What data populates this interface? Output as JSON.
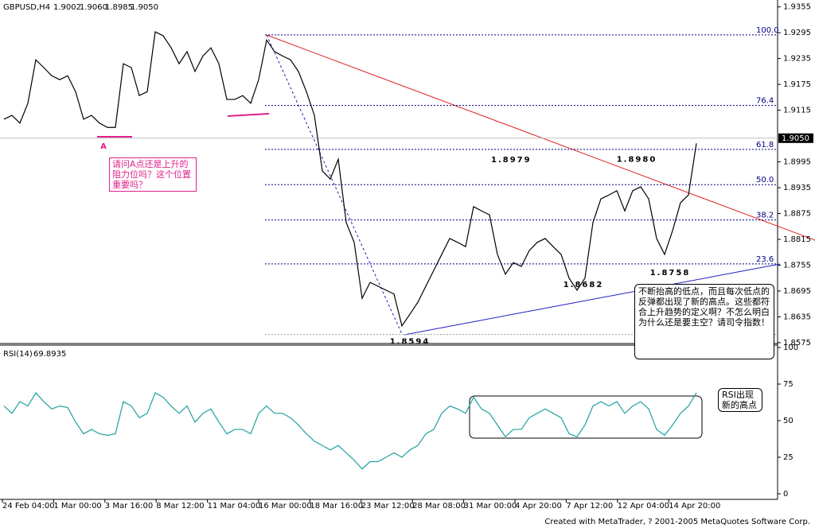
{
  "chart_data": [
    {
      "type": "line",
      "title": "GBPUSD,H4",
      "ohlc": [
        1.9002,
        {
          "value": 1.906,
          "label": "1.9060"
        },
        1.8985,
        {
          "value": 1.905,
          "label": "1.9050"
        }
      ],
      "color": "#000000",
      "values": [
        1.9094,
        1.9103,
        1.9085,
        1.9131,
        1.9232,
        1.9214,
        1.9195,
        1.9186,
        1.9195,
        1.9158,
        1.9094,
        1.9103,
        1.9085,
        1.9075,
        1.9075,
        1.9223,
        1.9214,
        1.9149,
        1.9158,
        1.9297,
        1.9288,
        1.926,
        1.9223,
        1.9251,
        1.9205,
        1.9241,
        1.926,
        1.9223,
        1.914,
        1.914,
        1.9149,
        1.9131,
        1.9186,
        1.9278,
        1.9251,
        1.9241,
        1.9232,
        1.9205,
        1.9158,
        1.9103,
        1.8974,
        1.8955,
        1.9001,
        1.8854,
        1.8808,
        1.8678,
        1.8715,
        1.8706,
        1.8697,
        1.8688,
        1.8614,
        1.8641,
        1.8669,
        1.8706,
        1.8743,
        1.878,
        1.8817,
        1.8808,
        1.8798,
        1.8891,
        1.8881,
        1.8872,
        1.878,
        1.8734,
        1.8761,
        1.8752,
        1.8789,
        1.8808,
        1.8817,
        1.8798,
        1.878,
        1.8725,
        1.8697,
        1.8725,
        1.8854,
        1.8909,
        1.8918,
        1.8928,
        1.8881,
        1.8928,
        1.8937,
        1.8909,
        1.8817,
        1.878,
        1.8835,
        1.89,
        1.8918,
        1.9038
      ],
      "ylim": [
        1.8573,
        1.9371
      ],
      "yticks": [
        1.9355,
        1.9295,
        1.9235,
        1.9175,
        1.9115,
        1.8995,
        1.8935,
        1.8875,
        1.8815,
        1.8755,
        1.8695,
        1.8635,
        1.8575
      ],
      "current_price": {
        "value": 1.905,
        "label": "1.9050"
      },
      "fib_levels": [
        {
          "ratio": "100.0",
          "price": 1.929
        },
        {
          "ratio": "76.4",
          "price": 1.9126
        },
        {
          "ratio": "61.8",
          "price": 1.9024
        },
        {
          "ratio": "50.0",
          "price": 1.8942
        },
        {
          "ratio": "38.2",
          "price": 1.886
        },
        {
          "ratio": "23.6",
          "price": 1.8758
        }
      ],
      "price_labels": [
        1.8979,
        {
          "value": 1.898,
          "label": "1.8980"
        },
        1.8758,
        1.8682,
        1.8594
      ],
      "time_labels": [
        "24 Feb 04:00",
        "1 Mar 00:00",
        "3 Mar 16:00",
        "8 Mar 12:00",
        "11 Mar 04:00",
        "16 Mar 00:00",
        "18 Mar 16:00",
        "23 Mar 12:00",
        "28 Mar 08:00",
        "31 Mar 00:00",
        "4 Apr 20:00",
        "7 Apr 12:00",
        "12 Apr 04:00",
        "14 Apr 20:00"
      ]
    },
    {
      "type": "line",
      "title": "RSI(14)",
      "last_value": 69.8935,
      "color": "#20a0a0",
      "values": [
        60,
        55,
        63,
        60,
        69,
        63,
        58,
        60,
        59,
        49,
        41,
        44,
        41,
        40,
        41,
        63,
        60,
        52,
        55,
        69,
        66,
        60,
        55,
        60,
        49,
        55,
        58,
        49,
        41,
        44,
        44,
        41,
        55,
        60,
        55,
        55,
        52,
        47,
        41,
        36,
        33,
        30,
        33,
        28,
        23,
        17,
        22,
        22,
        25,
        28,
        25,
        30,
        33,
        41,
        44,
        55,
        60,
        58,
        55,
        66,
        58,
        55,
        47,
        39,
        44,
        44,
        52,
        55,
        58,
        55,
        52,
        41,
        39,
        47,
        60,
        63,
        60,
        63,
        55,
        60,
        63,
        58,
        44,
        40,
        47,
        55,
        60,
        69
      ],
      "ylim": [
        0,
        100
      ],
      "yticks": [
        100,
        75,
        50,
        25,
        0
      ]
    }
  ],
  "annotations": {
    "marker": "A",
    "question": "请问A点还是上升的阻力位吗？这个位置重要吗？",
    "trend_note": "不断抬高的低点，而且每次低点的反弹都出现了新的高点。这些都符合上升趋势的定义啊？不怎么明白为什么还是要主空？请司令指数！",
    "rsi_note": "RSI出现新的高点"
  },
  "footer": "Created with MetaTrader, ? 2001-2005 MetaQuotes Software Corp."
}
